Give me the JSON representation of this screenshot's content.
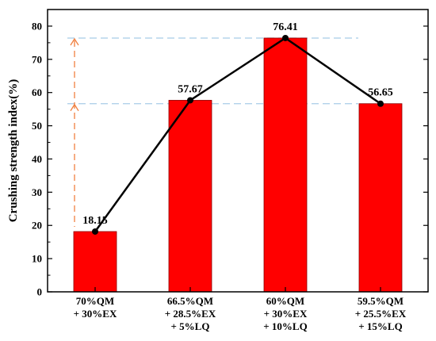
{
  "chart_data": {
    "type": "bar",
    "title": "",
    "xlabel": "",
    "ylabel": "Crushing strength index(%)",
    "ylim": [
      0,
      85
    ],
    "yticks": [
      0,
      10,
      20,
      30,
      40,
      50,
      60,
      70,
      80
    ],
    "categories": [
      [
        "70%QM",
        "+ 30%EX"
      ],
      [
        "66.5%QM",
        "+ 28.5%EX",
        "+ 5%LQ"
      ],
      [
        "60%QM",
        "+ 30%EX",
        "+ 10%LQ"
      ],
      [
        "59.5%QM",
        "+ 25.5%EX",
        "+ 15%LQ"
      ]
    ],
    "values": [
      18.15,
      57.67,
      76.41,
      56.65
    ],
    "data_labels": [
      "18.15",
      "57.67",
      "76.41",
      "56.65"
    ],
    "overlay": "line connecting bar tops",
    "reference_lines": [
      76.41,
      56.65
    ],
    "bar_color": "#ff0000",
    "line_color": "#000000",
    "reference_line_color": "#a8cce8",
    "arrow_color": "#f08040",
    "grid": false
  }
}
